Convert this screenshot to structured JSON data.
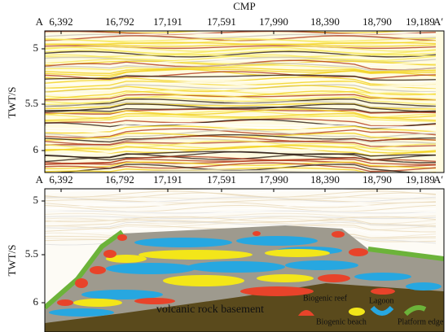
{
  "title": "CMP",
  "panels": [
    {
      "left_label": "A",
      "right_label": "A′",
      "x_tick_labels": [
        "6,392",
        "16,792",
        "17,191",
        "17,591",
        "17,990",
        "18,390",
        "18,790",
        "19,189"
      ],
      "y_axis_label": "TWT/S",
      "y_tick_labels": [
        "5",
        "5.5",
        "6"
      ]
    },
    {
      "left_label": "A",
      "right_label": "A′",
      "x_tick_labels": [
        "6,392",
        "16,792",
        "17,191",
        "17,591",
        "17,990",
        "18,390",
        "18,790",
        "19,189"
      ],
      "y_axis_label": "TWT/S",
      "y_tick_labels": [
        "5",
        "5.5",
        "6"
      ],
      "basement_label": "volcanic rock basement",
      "legend": [
        "Biogenic reef",
        "Lagoon",
        "Biogenic beach",
        "Platform edge"
      ]
    }
  ]
}
